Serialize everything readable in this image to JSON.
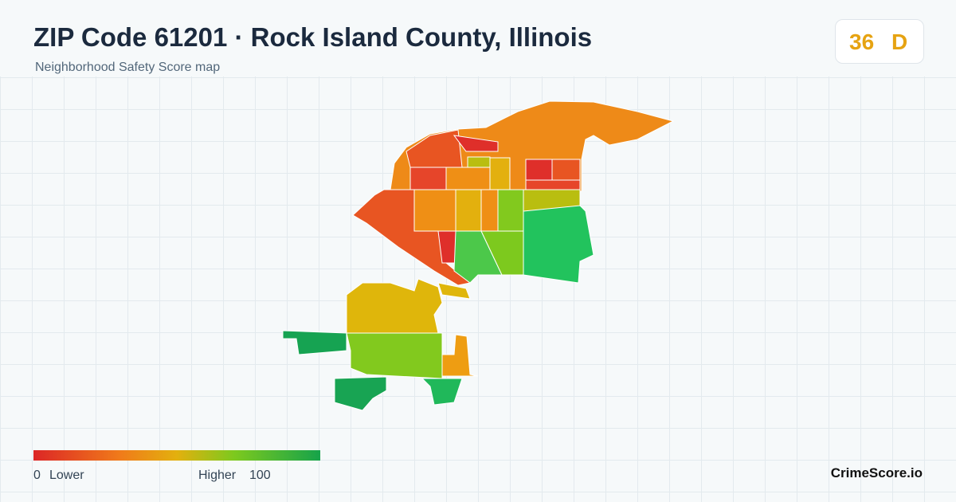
{
  "header": {
    "title": "ZIP Code 61201 · Rock Island County, Illinois",
    "subtitle": "Neighborhood Safety Score map"
  },
  "score_badge": {
    "score": "36",
    "grade": "D"
  },
  "legend": {
    "min": "0",
    "min_label": "Lower",
    "max_label": "Higher",
    "max": "100"
  },
  "brand": "CrimeScore.io"
}
